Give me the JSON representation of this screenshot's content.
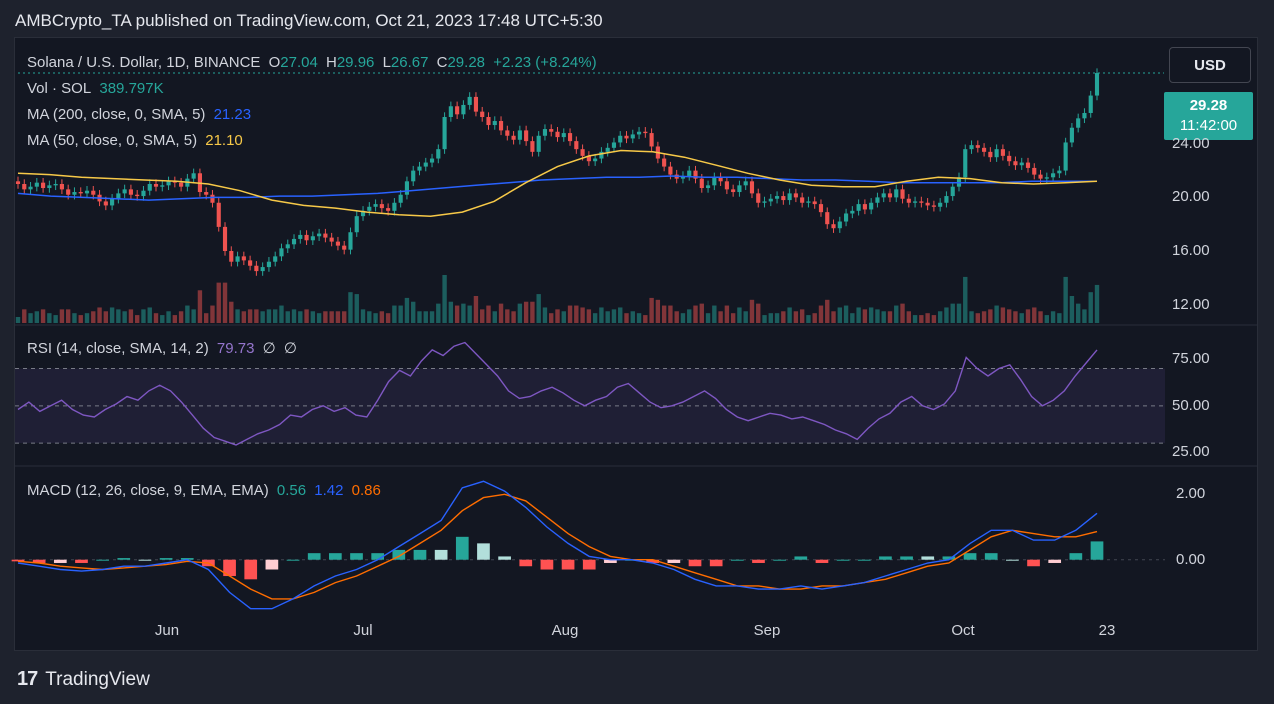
{
  "header": {
    "text": "AMBCrypto_TA published on TradingView.com, Oct 21, 2023 17:48 UTC+5:30"
  },
  "legend": {
    "symbol": "Solana / U.S. Dollar, 1D, BINANCE",
    "open_label": "O",
    "open": "27.04",
    "high_label": "H",
    "high": "29.96",
    "low_label": "L",
    "low": "26.67",
    "close_label": "C",
    "close": "29.28",
    "change": "+2.23 (+8.24%)",
    "vol_label": "Vol · SOL",
    "vol_value": "389.797K",
    "ma200_label": "MA (200, close, 0, SMA, 5)",
    "ma200_value": "21.23",
    "ma50_label": "MA (50, close, 0, SMA, 5)",
    "ma50_value": "21.10",
    "rsi_label": "RSI (14, close, SMA, 14, 2)",
    "rsi_value": "79.73",
    "rsi_extra1": "∅",
    "rsi_extra2": "∅",
    "macd_label": "MACD (12, 26, close, 9, EMA, EMA)",
    "macd_hist": "0.56",
    "macd_line": "1.42",
    "macd_signal": "0.86"
  },
  "toolbar": {
    "currency_button": "USD"
  },
  "price_badge": {
    "price": "29.28",
    "countdown": "11:42:00"
  },
  "colors": {
    "up": "#26a69a",
    "down": "#ef5350",
    "ma200": "#2962ff",
    "ma50": "#f7c948",
    "rsi": "#7e57c2",
    "macd": "#2962ff",
    "signal": "#ff6d00"
  },
  "footer": {
    "brand": "TradingView"
  },
  "chart_data": [
    {
      "type": "candlestick",
      "title": "Solana / U.S. Dollar, 1D, BINANCE",
      "x_ticks": [
        "Jun",
        "Jul",
        "Aug",
        "Sep",
        "Oct",
        "23"
      ],
      "y_ticks": [
        "12.00",
        "16.00",
        "20.00",
        "24.00"
      ],
      "ylim": [
        11,
        31
      ],
      "closes": [
        21.0,
        20.6,
        20.8,
        21.1,
        20.7,
        20.9,
        21.0,
        20.6,
        20.2,
        20.4,
        20.3,
        20.5,
        20.2,
        19.7,
        19.4,
        19.9,
        20.3,
        20.6,
        20.2,
        20.1,
        20.5,
        21.0,
        20.8,
        20.9,
        21.2,
        21.1,
        20.8,
        21.4,
        21.8,
        20.4,
        20.2,
        19.6,
        17.8,
        16.0,
        15.2,
        15.6,
        15.3,
        14.9,
        14.5,
        14.8,
        15.2,
        15.6,
        16.2,
        16.5,
        16.9,
        17.2,
        16.8,
        17.1,
        17.3,
        17.0,
        16.7,
        16.4,
        16.1,
        17.4,
        18.6,
        19.0,
        19.3,
        19.5,
        19.2,
        19.0,
        19.6,
        20.2,
        21.2,
        22.0,
        22.3,
        22.6,
        22.9,
        23.6,
        26.0,
        26.8,
        26.2,
        26.9,
        27.5,
        26.4,
        26.0,
        25.4,
        25.7,
        25.0,
        24.6,
        24.3,
        25.0,
        24.2,
        23.4,
        24.6,
        25.1,
        24.9,
        24.5,
        24.8,
        24.2,
        23.6,
        23.1,
        22.7,
        22.9,
        23.4,
        23.7,
        24.1,
        24.6,
        24.4,
        24.7,
        24.9,
        24.8,
        23.8,
        22.9,
        22.3,
        21.7,
        21.4,
        21.6,
        22.0,
        21.4,
        20.7,
        20.9,
        21.5,
        21.2,
        20.6,
        20.4,
        20.9,
        21.2,
        20.3,
        19.6,
        19.7,
        19.9,
        20.1,
        19.8,
        20.3,
        20.0,
        19.6,
        19.7,
        19.5,
        18.9,
        18.0,
        17.7,
        18.2,
        18.8,
        19.0,
        19.5,
        19.1,
        19.6,
        20.0,
        20.3,
        20.0,
        20.6,
        19.9,
        19.6,
        19.7,
        19.6,
        19.4,
        19.3,
        19.6,
        20.1,
        20.8,
        21.5,
        23.6,
        23.9,
        23.7,
        23.4,
        23.0,
        23.6,
        23.1,
        22.7,
        22.4,
        22.6,
        22.2,
        21.7,
        21.4,
        21.5,
        21.8,
        22.0,
        24.1,
        25.2,
        25.9,
        26.3,
        27.6,
        29.28
      ],
      "ma200": [
        20.3,
        20.1,
        20.0,
        19.9,
        19.8,
        19.9,
        20.0,
        20.0,
        20.1,
        20.1,
        20.2,
        20.3,
        20.5,
        20.7,
        20.9,
        21.1,
        21.3,
        21.4,
        21.5,
        21.5,
        21.6,
        21.5,
        21.5,
        21.4,
        21.3,
        21.3,
        21.2,
        21.1,
        21.1,
        21.1,
        21.1,
        21.2,
        21.2,
        21.2
      ],
      "ma50": [
        21.8,
        21.7,
        21.5,
        21.4,
        21.3,
        21.2,
        21.0,
        20.5,
        19.8,
        19.4,
        19.2,
        18.9,
        18.7,
        18.6,
        18.9,
        19.7,
        21.1,
        22.3,
        23.1,
        23.5,
        23.4,
        23.0,
        22.4,
        21.8,
        21.3,
        20.9,
        20.8,
        20.8,
        21.2,
        21.5,
        21.4,
        21.1,
        21.0,
        21.1,
        21.2
      ],
      "volume_note": "Vol · SOL 389.797K"
    },
    {
      "type": "line",
      "name": "RSI (14, close, SMA, 14, 2)",
      "y_ticks": [
        "25.00",
        "50.00",
        "75.00"
      ],
      "ylim": [
        22,
        88
      ],
      "bands": [
        30,
        50,
        70
      ],
      "values": [
        48,
        52,
        47,
        50,
        53,
        48,
        45,
        44,
        48,
        51,
        55,
        53,
        58,
        61,
        58,
        52,
        45,
        38,
        33,
        31,
        29,
        32,
        35,
        37,
        40,
        45,
        44,
        48,
        50,
        47,
        49,
        45,
        44,
        53,
        63,
        69,
        66,
        74,
        80,
        77,
        82,
        84,
        78,
        72,
        66,
        58,
        54,
        55,
        58,
        60,
        57,
        53,
        50,
        53,
        55,
        60,
        62,
        57,
        52,
        49,
        50,
        52,
        55,
        58,
        54,
        48,
        44,
        42,
        44,
        46,
        45,
        43,
        44,
        42,
        40,
        37,
        35,
        32,
        38,
        43,
        46,
        52,
        55,
        50,
        48,
        51,
        58,
        76,
        70,
        66,
        70,
        72,
        64,
        55,
        50,
        53,
        58,
        66,
        73,
        80
      ],
      "current": 79.73
    },
    {
      "type": "line",
      "name": "MACD (12, 26, close, 9, EMA, EMA)",
      "y_ticks": [
        "0.00",
        "2.00"
      ],
      "ylim": [
        -1.6,
        2.5
      ],
      "macd": [
        -0.1,
        -0.2,
        -0.3,
        -0.35,
        -0.3,
        -0.2,
        -0.2,
        -0.1,
        0.0,
        -0.3,
        -1.0,
        -1.5,
        -1.5,
        -1.2,
        -0.8,
        -0.5,
        -0.3,
        0.0,
        0.4,
        0.8,
        1.2,
        2.2,
        2.4,
        2.1,
        1.6,
        1.0,
        0.5,
        0.1,
        0.0,
        0.0,
        -0.1,
        -0.3,
        -0.6,
        -0.8,
        -0.8,
        -0.9,
        -0.9,
        -0.8,
        -0.9,
        -0.8,
        -0.7,
        -0.5,
        -0.3,
        -0.1,
        0.0,
        0.5,
        0.9,
        0.9,
        0.6,
        0.6,
        0.9,
        1.42
      ],
      "signal": [
        -0.05,
        -0.1,
        -0.2,
        -0.25,
        -0.3,
        -0.25,
        -0.2,
        -0.15,
        -0.05,
        -0.1,
        -0.5,
        -0.9,
        -1.2,
        -1.2,
        -1.0,
        -0.7,
        -0.5,
        -0.2,
        0.1,
        0.5,
        0.9,
        1.5,
        1.9,
        2.0,
        1.8,
        1.3,
        0.8,
        0.4,
        0.1,
        0.0,
        0.0,
        -0.2,
        -0.4,
        -0.6,
        -0.8,
        -0.8,
        -0.9,
        -0.9,
        -0.8,
        -0.8,
        -0.7,
        -0.6,
        -0.4,
        -0.2,
        -0.1,
        0.3,
        0.7,
        0.9,
        0.8,
        0.7,
        0.7,
        0.86
      ],
      "current_hist": 0.56,
      "current_macd": 1.42,
      "current_signal": 0.86
    }
  ]
}
